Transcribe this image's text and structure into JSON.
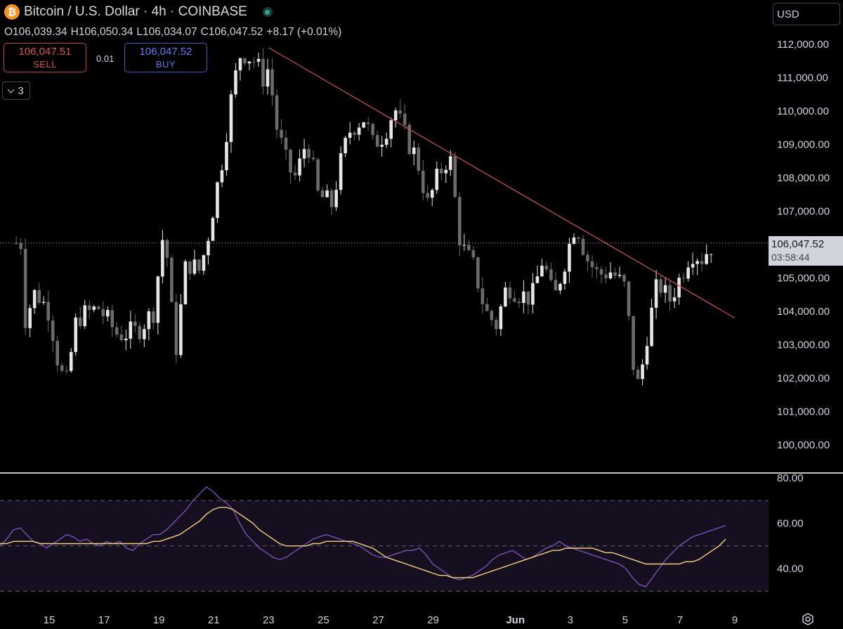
{
  "header": {
    "symbol_title": "Bitcoin / U.S. Dollar · 4h · COINBASE",
    "coin_glyph": "₿",
    "ohlc": {
      "open": "O106,039.34",
      "high": "H106,050.34",
      "low": "L106,034.07",
      "close": "C106,047.52",
      "change": "+8.17 (+0.01%)"
    }
  },
  "trade": {
    "sell_price": "106,047.51",
    "sell_label": "SELL",
    "spread": "0.01",
    "buy_price": "106,047.52",
    "buy_label": "BUY"
  },
  "indicators": {
    "collapsed_count": "3"
  },
  "currency": {
    "label": "USD"
  },
  "last_price": {
    "price": "106,047.52",
    "countdown": "03:58:44"
  },
  "colors": {
    "background": "#000000",
    "candle_up": "#e6e6e6",
    "candle_down": "#6b6b6b",
    "trendline": "#c94b4b",
    "rsi_line": "#7e57c2",
    "rsi_ma": "#f4d27a",
    "rsi_band": "#150f1f"
  },
  "chart_data": [
    {
      "type": "candlestick",
      "title": "Bitcoin / U.S. Dollar · 4h · COINBASE",
      "ylim": [
        99200,
        112900
      ],
      "yticks": [
        "100,000.00",
        "101,000.00",
        "102,000.00",
        "103,000.00",
        "104,000.00",
        "105,000.00",
        "106,000.00",
        "107,000.00",
        "108,000.00",
        "109,000.00",
        "110,000.00",
        "111,000.00",
        "112,000.00"
      ],
      "xticks": [
        {
          "label": "15",
          "day": 15
        },
        {
          "label": "17",
          "day": 17
        },
        {
          "label": "19",
          "day": 19
        },
        {
          "label": "21",
          "day": 21
        },
        {
          "label": "23",
          "day": 23
        },
        {
          "label": "25",
          "day": 25
        },
        {
          "label": "27",
          "day": 27
        },
        {
          "label": "29",
          "day": 29
        },
        {
          "label": "Jun",
          "day": 32
        },
        {
          "label": "3",
          "day": 34
        },
        {
          "label": "5",
          "day": 36
        },
        {
          "label": "7",
          "day": 38
        },
        {
          "label": "9",
          "day": 40
        }
      ],
      "last_price": 106047.52,
      "close_path": [
        {
          "day": 14.0,
          "price": 103500
        },
        {
          "day": 14.5,
          "price": 104600
        },
        {
          "day": 15.0,
          "price": 104000
        },
        {
          "day": 15.3,
          "price": 102600
        },
        {
          "day": 15.6,
          "price": 101700
        },
        {
          "day": 16.0,
          "price": 103800
        },
        {
          "day": 16.8,
          "price": 104100
        },
        {
          "day": 17.5,
          "price": 103300
        },
        {
          "day": 18.2,
          "price": 103400
        },
        {
          "day": 18.8,
          "price": 104000
        },
        {
          "day": 19.2,
          "price": 106600
        },
        {
          "day": 19.6,
          "price": 102700
        },
        {
          "day": 20.0,
          "price": 105500
        },
        {
          "day": 20.5,
          "price": 105200
        },
        {
          "day": 20.8,
          "price": 106300
        },
        {
          "day": 21.0,
          "price": 107200
        },
        {
          "day": 21.3,
          "price": 108500
        },
        {
          "day": 21.7,
          "price": 110700
        },
        {
          "day": 22.0,
          "price": 111800
        },
        {
          "day": 22.5,
          "price": 111500
        },
        {
          "day": 22.8,
          "price": 111000
        },
        {
          "day": 23.0,
          "price": 111300
        },
        {
          "day": 23.3,
          "price": 109500
        },
        {
          "day": 23.7,
          "price": 108300
        },
        {
          "day": 24.0,
          "price": 108000
        },
        {
          "day": 24.4,
          "price": 109200
        },
        {
          "day": 24.8,
          "price": 107500
        },
        {
          "day": 25.3,
          "price": 107200
        },
        {
          "day": 25.7,
          "price": 108700
        },
        {
          "day": 26.0,
          "price": 109500
        },
        {
          "day": 26.5,
          "price": 109800
        },
        {
          "day": 26.8,
          "price": 109000
        },
        {
          "day": 27.2,
          "price": 109300
        },
        {
          "day": 27.6,
          "price": 110100
        },
        {
          "day": 28.0,
          "price": 109200
        },
        {
          "day": 28.4,
          "price": 108600
        },
        {
          "day": 28.8,
          "price": 107200
        },
        {
          "day": 29.2,
          "price": 108100
        },
        {
          "day": 29.6,
          "price": 108700
        },
        {
          "day": 30.0,
          "price": 106000
        },
        {
          "day": 30.5,
          "price": 105300
        },
        {
          "day": 30.9,
          "price": 104000
        },
        {
          "day": 31.3,
          "price": 103600
        },
        {
          "day": 31.7,
          "price": 104800
        },
        {
          "day": 32.2,
          "price": 104500
        },
        {
          "day": 32.6,
          "price": 104400
        },
        {
          "day": 33.0,
          "price": 105600
        },
        {
          "day": 33.4,
          "price": 104300
        },
        {
          "day": 33.8,
          "price": 105500
        },
        {
          "day": 34.2,
          "price": 106700
        },
        {
          "day": 34.6,
          "price": 105600
        },
        {
          "day": 35.0,
          "price": 105100
        },
        {
          "day": 35.5,
          "price": 105200
        },
        {
          "day": 36.0,
          "price": 104700
        },
        {
          "day": 36.3,
          "price": 102400
        },
        {
          "day": 36.5,
          "price": 101700
        },
        {
          "day": 36.8,
          "price": 103300
        },
        {
          "day": 37.2,
          "price": 104900
        },
        {
          "day": 37.6,
          "price": 104300
        },
        {
          "day": 38.0,
          "price": 105000
        },
        {
          "day": 38.4,
          "price": 105800
        },
        {
          "day": 38.8,
          "price": 105600
        },
        {
          "day": 39.2,
          "price": 106047
        }
      ],
      "trendline": {
        "start": {
          "day": 23.0,
          "price": 111900
        },
        "end": {
          "day": 40.0,
          "price": 103800
        }
      },
      "series": [
        {
          "name": "BTCUSD",
          "values": "ohlc"
        }
      ]
    },
    {
      "type": "line",
      "title": "",
      "ylim": [
        28,
        82
      ],
      "yticks": [
        "40.00",
        "60.00",
        "80.00"
      ],
      "bands": [
        30,
        50,
        70
      ],
      "series": [
        {
          "kind": "rsi",
          "values": [
            50,
            53,
            57,
            58,
            55,
            52,
            51,
            49,
            51,
            53,
            55,
            54,
            52,
            53,
            51,
            50,
            52,
            51,
            52,
            49,
            48,
            51,
            53,
            55,
            55,
            57,
            60,
            63,
            66,
            70,
            73,
            76,
            74,
            71,
            69,
            66,
            60,
            55,
            52,
            49,
            47,
            45,
            44,
            45,
            47,
            49,
            51,
            53,
            54,
            55,
            54,
            53,
            52,
            51,
            50,
            48,
            46,
            45,
            45,
            46,
            47,
            48,
            48,
            49,
            46,
            42,
            40,
            38,
            36,
            35,
            36,
            37,
            39,
            41,
            44,
            46,
            47,
            48,
            46,
            44,
            45,
            47,
            49,
            50,
            52,
            50,
            49,
            48,
            47,
            46,
            45,
            44,
            43,
            42,
            40,
            36,
            33,
            32,
            36,
            40,
            44,
            47,
            50,
            52,
            54,
            55,
            56,
            57,
            58,
            59
          ]
        },
        {
          "kind": "rsi_ma",
          "values": [
            51,
            51,
            52,
            52,
            52,
            52,
            51,
            51,
            51,
            51,
            51,
            51,
            51,
            51,
            51,
            51,
            51,
            51,
            51,
            51,
            51,
            51,
            51,
            52,
            52,
            53,
            54,
            55,
            57,
            59,
            61,
            64,
            66,
            67,
            67,
            66,
            64,
            62,
            60,
            57,
            55,
            53,
            51,
            50,
            50,
            50,
            50,
            51,
            51,
            52,
            52,
            52,
            52,
            52,
            51,
            50,
            49,
            47,
            45,
            44,
            43,
            42,
            41,
            40,
            39,
            38,
            37,
            37,
            36,
            36,
            36,
            36,
            37,
            38,
            39,
            40,
            41,
            42,
            43,
            44,
            45,
            46,
            47,
            48,
            48,
            49,
            49,
            49,
            49,
            49,
            48,
            47,
            47,
            46,
            45,
            44,
            43,
            42,
            42,
            42,
            42,
            42,
            42,
            43,
            43,
            44,
            46,
            48,
            50,
            53
          ]
        }
      ]
    }
  ]
}
